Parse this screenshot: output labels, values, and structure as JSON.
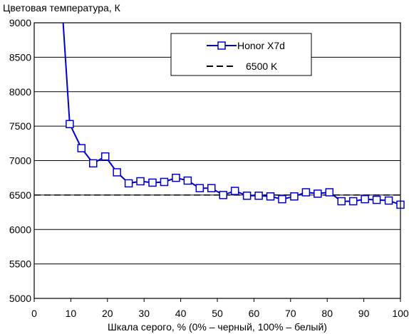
{
  "chart_data": {
    "type": "line",
    "title": "Цветовая температура, К",
    "xlabel": "Шкала серого, % (0% – черный, 100% – белый)",
    "ylabel": "",
    "xlim": [
      0,
      100
    ],
    "ylim": [
      5000,
      9000
    ],
    "x_ticks": [
      "0",
      "10",
      "20",
      "30",
      "40",
      "50",
      "60",
      "70",
      "80",
      "90",
      "100"
    ],
    "y_ticks": [
      "5000",
      "5500",
      "6000",
      "6500",
      "7000",
      "7500",
      "8000",
      "8500",
      "9000"
    ],
    "grid": "horizontal",
    "legend_position": "top-right",
    "series": [
      {
        "name": "Honor X7d",
        "color": "#0000cc",
        "marker": "square",
        "points": [
          [
            9.7,
            7530
          ],
          [
            12.9,
            7180
          ],
          [
            16.1,
            6960
          ],
          [
            19.4,
            7060
          ],
          [
            22.6,
            6830
          ],
          [
            25.8,
            6670
          ],
          [
            29.0,
            6700
          ],
          [
            32.3,
            6680
          ],
          [
            35.5,
            6690
          ],
          [
            38.7,
            6750
          ],
          [
            41.9,
            6710
          ],
          [
            45.2,
            6600
          ],
          [
            48.4,
            6600
          ],
          [
            51.6,
            6500
          ],
          [
            54.8,
            6560
          ],
          [
            58.1,
            6490
          ],
          [
            61.3,
            6490
          ],
          [
            64.5,
            6480
          ],
          [
            67.7,
            6440
          ],
          [
            71.0,
            6480
          ],
          [
            74.2,
            6540
          ],
          [
            77.4,
            6520
          ],
          [
            80.6,
            6540
          ],
          [
            83.9,
            6410
          ],
          [
            87.1,
            6410
          ],
          [
            90.3,
            6440
          ],
          [
            93.5,
            6430
          ],
          [
            96.8,
            6420
          ],
          [
            100,
            6360
          ]
        ],
        "lead_in": [
          [
            7.9,
            9000
          ],
          [
            9.7,
            7530
          ]
        ]
      },
      {
        "name": "6500 K",
        "color": "#000000",
        "style": "dashed",
        "points": [
          [
            0,
            6500
          ],
          [
            100,
            6500
          ]
        ]
      }
    ]
  }
}
